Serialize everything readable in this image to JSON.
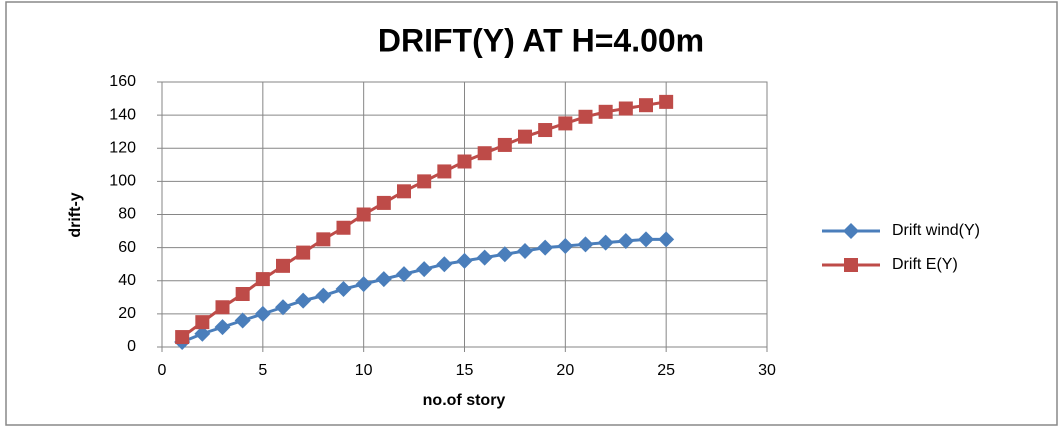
{
  "chart_data": {
    "type": "line",
    "title": "DRIFT(Y) AT H=4.00m",
    "xlabel": "no.of story",
    "ylabel": "drift-y",
    "x": [
      1,
      2,
      3,
      4,
      5,
      6,
      7,
      8,
      9,
      10,
      11,
      12,
      13,
      14,
      15,
      16,
      17,
      18,
      19,
      20,
      21,
      22,
      23,
      24,
      25
    ],
    "series": [
      {
        "name": "Drift wind(Y)",
        "color": "#4a7ebb",
        "marker": "diamond",
        "values": [
          3,
          8,
          12,
          16,
          20,
          24,
          28,
          31,
          35,
          38,
          41,
          44,
          47,
          50,
          52,
          54,
          56,
          58,
          60,
          61,
          62,
          63,
          64,
          65,
          65
        ]
      },
      {
        "name": "Drift E(Y)",
        "color": "#be4b48",
        "marker": "square",
        "values": [
          6,
          15,
          24,
          32,
          41,
          49,
          57,
          65,
          72,
          80,
          87,
          94,
          100,
          106,
          112,
          117,
          122,
          127,
          131,
          135,
          139,
          142,
          144,
          146,
          148
        ]
      }
    ],
    "xlim": [
      0,
      30
    ],
    "xticks": [
      0,
      5,
      10,
      15,
      20,
      25,
      30
    ],
    "ylim": [
      0,
      160
    ],
    "yticks": [
      0,
      20,
      40,
      60,
      80,
      100,
      120,
      140,
      160
    ],
    "grid": true,
    "legend": "right"
  }
}
